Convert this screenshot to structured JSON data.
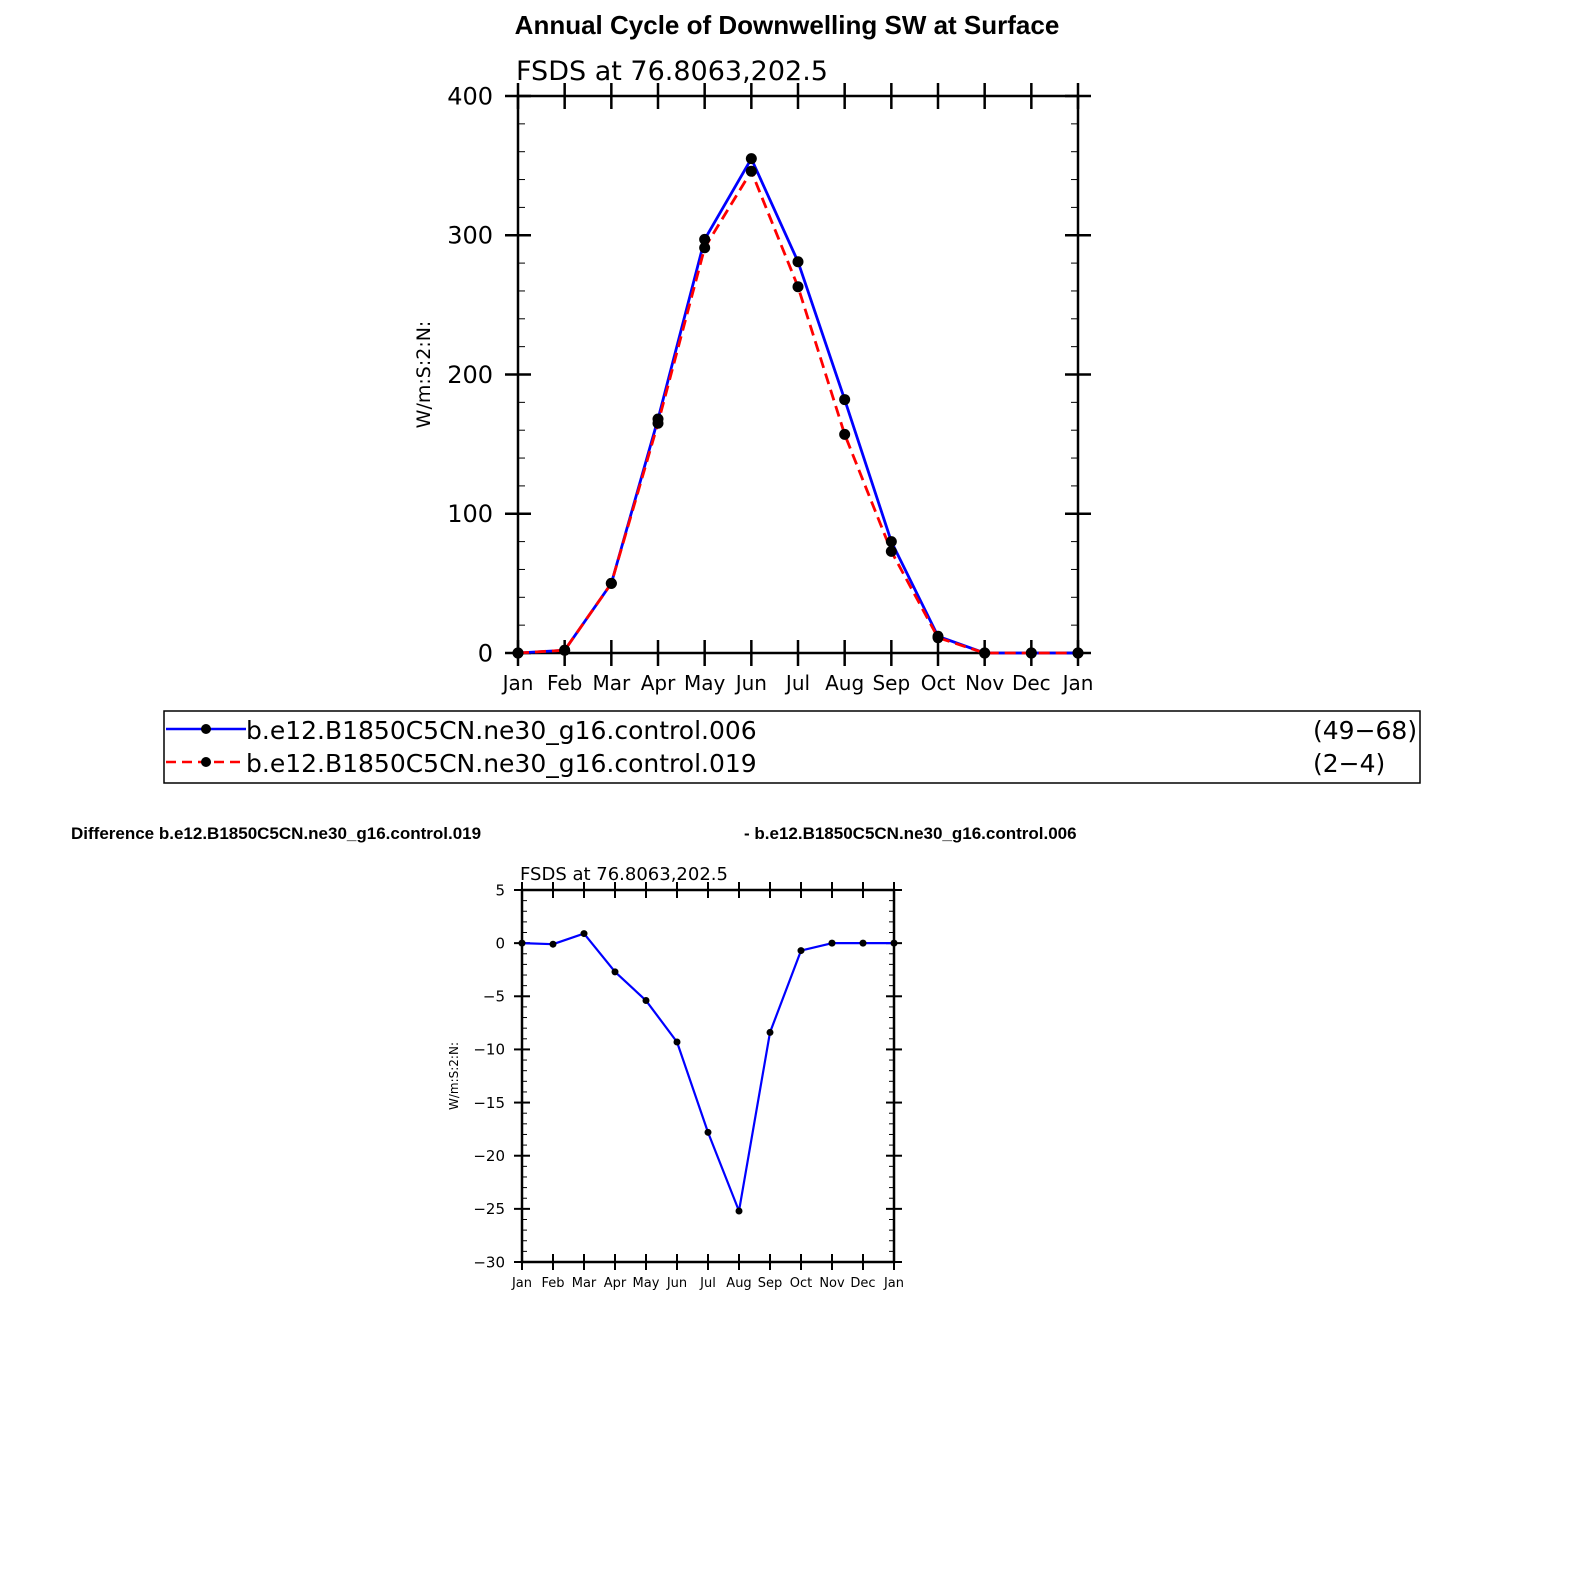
{
  "page": {
    "title": "Annual Cycle of Downwelling SW at Surface",
    "diff_title_left": "Difference b.e12.B1850C5CN.ne30_g16.control.019",
    "diff_title_right": "- b.e12.B1850C5CN.ne30_g16.control.006"
  },
  "legend": {
    "entries": [
      {
        "label": "b.e12.B1850C5CN.ne30_g16.control.006",
        "years": "(49−68)",
        "color": "#0000ff",
        "style": "solid"
      },
      {
        "label": "b.e12.B1850C5CN.ne30_g16.control.019",
        "years": "(2−4)",
        "color": "#ff0000",
        "style": "dashed"
      }
    ]
  },
  "chart_data": [
    {
      "type": "line",
      "title": "FSDS  at  76.8063,202.5",
      "xlabel": "",
      "ylabel": "W/m:S:2:N:",
      "categories": [
        "Jan",
        "Feb",
        "Mar",
        "Apr",
        "May",
        "Jun",
        "Jul",
        "Aug",
        "Sep",
        "Oct",
        "Nov",
        "Dec",
        "Jan"
      ],
      "ylim": [
        0,
        400
      ],
      "yticks": [
        0,
        100,
        200,
        300,
        400
      ],
      "grid": false,
      "series": [
        {
          "name": "b.e12.B1850C5CN.ne30_g16.control.006",
          "color": "#0000ff",
          "dash": false,
          "values": [
            0,
            2,
            50,
            168,
            297,
            355,
            281,
            182,
            80,
            12,
            0,
            0,
            0
          ]
        },
        {
          "name": "b.e12.B1850C5CN.ne30_g16.control.019",
          "color": "#ff0000",
          "dash": true,
          "values": [
            0,
            2,
            50,
            165,
            291,
            346,
            263,
            157,
            73,
            11,
            0,
            0,
            0
          ]
        }
      ]
    },
    {
      "type": "line",
      "title": "FSDS  at  76.8063,202.5",
      "xlabel": "",
      "ylabel": "W/m:S:2:N:",
      "categories": [
        "Jan",
        "Feb",
        "Mar",
        "Apr",
        "May",
        "Jun",
        "Jul",
        "Aug",
        "Sep",
        "Oct",
        "Nov",
        "Dec",
        "Jan"
      ],
      "ylim": [
        -30,
        5
      ],
      "yticks": [
        -30,
        -25,
        -20,
        -15,
        -10,
        -5,
        0,
        5
      ],
      "grid": false,
      "series": [
        {
          "color": "#0000ff",
          "dash": false,
          "values": [
            0,
            -0.1,
            0.9,
            -2.7,
            -5.4,
            -9.3,
            -17.8,
            -25.2,
            -8.4,
            -0.7,
            0,
            0,
            0
          ]
        }
      ]
    }
  ]
}
